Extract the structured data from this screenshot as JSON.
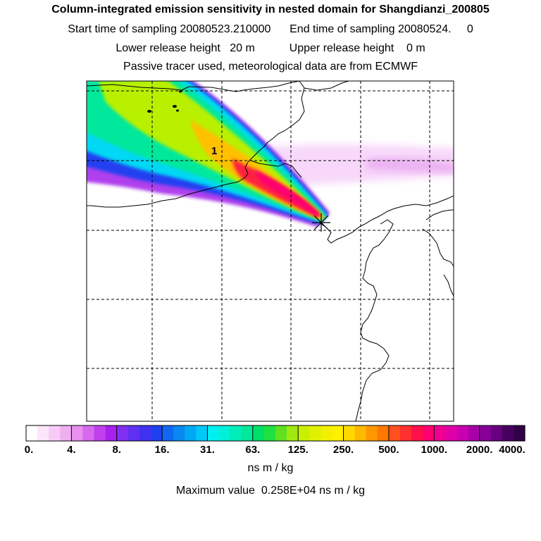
{
  "header": {
    "title": "Column-integrated emission sensitivity in nested domain for Shangdianzi_200805",
    "sampling_line": "Start time of sampling 20080523.210000      End time of sampling 20080524.     0",
    "release_line": "Lower release height   20 m           Upper release height    0 m",
    "tracer_line": "Passive tracer used, meteorological data are from ECMWF"
  },
  "map": {
    "label_1": "1"
  },
  "colorbar": {
    "ticks": [
      "0.",
      "4.",
      "8.",
      "16.",
      "31.",
      "63.",
      "125.",
      "250.",
      "500.",
      "1000.",
      "2000.",
      "4000."
    ],
    "colors": [
      "#ffffff",
      "#fbe6fb",
      "#f6ccf6",
      "#f0b0f0",
      "#e890ee",
      "#d868ee",
      "#c040ee",
      "#a820ee",
      "#8030f0",
      "#6030f0",
      "#4030f0",
      "#2040f0",
      "#1068f0",
      "#0888f0",
      "#00a8f4",
      "#00c8f8",
      "#00f0f0",
      "#00f0d8",
      "#00ecb8",
      "#00e898",
      "#00e068",
      "#20e040",
      "#60e020",
      "#a0e810",
      "#c8f000",
      "#e0f000",
      "#f0f000",
      "#fff000",
      "#ffd800",
      "#ffb800",
      "#ff9800",
      "#ff7800",
      "#ff5020",
      "#ff3030",
      "#ff1048",
      "#ff0070",
      "#f00090",
      "#e000a8",
      "#c800b0",
      "#a800a8",
      "#880098",
      "#680080",
      "#480060",
      "#300048"
    ]
  },
  "unit_label": "ns m / kg",
  "max_value": {
    "label": "Maximum value",
    "value": "0.258E+04",
    "unit": "ns m / kg"
  }
}
